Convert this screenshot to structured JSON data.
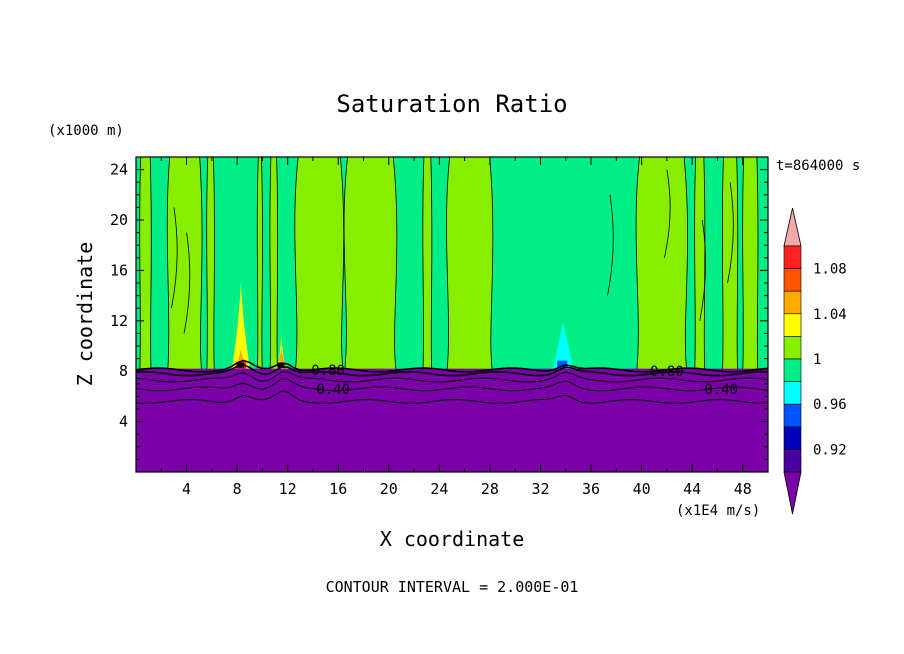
{
  "chart_data": {
    "type": "heatmap",
    "title": "Saturation Ratio",
    "xlabel": "X coordinate",
    "ylabel": "Z coordinate",
    "x_unit": "(x1E4 m/s)",
    "y_unit": "(x1000 m)",
    "time_label": "t=864000 s",
    "footer": "CONTOUR INTERVAL = 2.000E-01",
    "xlim": [
      0,
      50
    ],
    "ylim": [
      0,
      25
    ],
    "xticks": [
      4,
      8,
      12,
      16,
      20,
      24,
      28,
      32,
      36,
      40,
      44,
      48
    ],
    "yticks": [
      4,
      8,
      12,
      16,
      20,
      24
    ],
    "colorbar": {
      "labels": [
        1.08,
        1.04,
        1,
        0.96,
        0.92
      ],
      "levels": [
        0.92,
        0.94,
        0.96,
        0.98,
        1.0,
        1.02,
        1.04,
        1.06,
        1.08,
        1.1
      ],
      "colors": [
        "#7a00a8",
        "#4a00a0",
        "#0000b8",
        "#0055ff",
        "#00ffff",
        "#00ee88",
        "#88ee00",
        "#ffff00",
        "#ffaa00",
        "#ff5500",
        "#ff2222",
        "#f4a8a8"
      ]
    },
    "contour_labels": [
      {
        "text": "0.80",
        "x": 15.2,
        "z": 8.1
      },
      {
        "text": "0.40",
        "x": 15.6,
        "z": 6.6
      },
      {
        "text": "0.80",
        "x": 42.0,
        "z": 8.0
      },
      {
        "text": "0.40",
        "x": 46.3,
        "z": 6.6
      }
    ],
    "fields": {
      "dry_layer_top_z": 8.2,
      "upper_base_value": 0.99,
      "supersat_plumes": [
        {
          "x": 8.3,
          "top_z": 15.0,
          "max": 1.06
        },
        {
          "x": 11.5,
          "top_z": 11.0,
          "max": 1.04
        },
        {
          "x": 33.8,
          "top_z": 11.8,
          "max": 0.97
        }
      ]
    }
  }
}
